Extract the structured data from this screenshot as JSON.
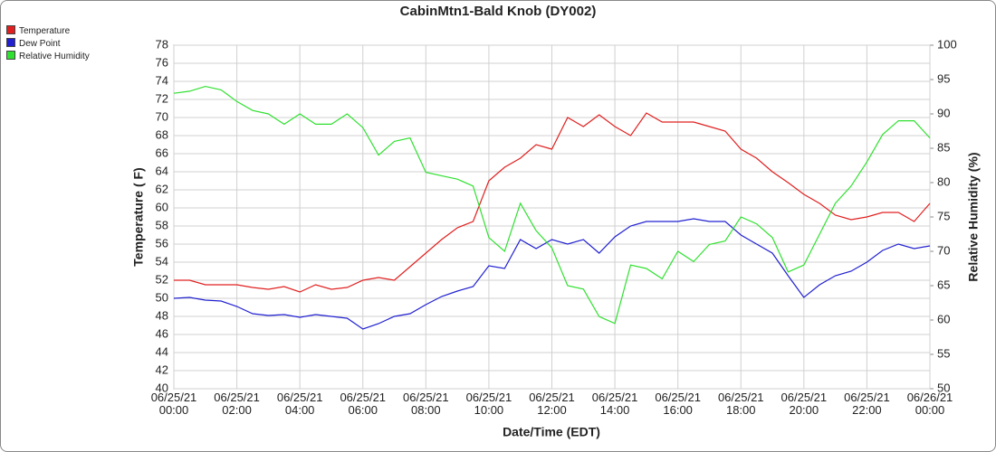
{
  "chart_data": {
    "type": "line",
    "title": "CabinMtn1-Bald Knob (DY002)",
    "x_label": "Date/Time (EDT)",
    "y_label": "Temperature ( F)",
    "y2_label": "Relative Humidity (%)",
    "legend": "top-left",
    "grid": true,
    "xlim": [
      0,
      24
    ],
    "xticks": [
      {
        "value": 0,
        "label": "06/25/21 00:00"
      },
      {
        "value": 2,
        "label": "06/25/21 02:00"
      },
      {
        "value": 4,
        "label": "06/25/21 04:00"
      },
      {
        "value": 6,
        "label": "06/25/21 06:00"
      },
      {
        "value": 8,
        "label": "06/25/21 08:00"
      },
      {
        "value": 10,
        "label": "06/25/21 10:00"
      },
      {
        "value": 12,
        "label": "06/25/21 12:00"
      },
      {
        "value": 14,
        "label": "06/25/21 14:00"
      },
      {
        "value": 16,
        "label": "06/25/21 16:00"
      },
      {
        "value": 18,
        "label": "06/25/21 18:00"
      },
      {
        "value": 20,
        "label": "06/25/21 20:00"
      },
      {
        "value": 22,
        "label": "06/25/21 22:00"
      },
      {
        "value": 24,
        "label": "06/26/21 00:00"
      }
    ],
    "ylim": [
      40,
      78
    ],
    "yticks": [
      40,
      42,
      44,
      46,
      48,
      50,
      52,
      54,
      56,
      58,
      60,
      62,
      64,
      66,
      68,
      70,
      72,
      74,
      76,
      78
    ],
    "y2lim": [
      50,
      100
    ],
    "y2ticks": [
      50,
      55,
      60,
      65,
      70,
      75,
      80,
      85,
      90,
      95,
      100
    ],
    "x": [
      0,
      0.5,
      1,
      1.5,
      2,
      2.5,
      3,
      3.5,
      4,
      4.5,
      5,
      5.5,
      6,
      6.5,
      7,
      7.5,
      8,
      8.5,
      9,
      9.5,
      10,
      10.5,
      11,
      11.5,
      12,
      12.5,
      13,
      13.5,
      14,
      14.5,
      15,
      15.5,
      16,
      16.5,
      17,
      17.5,
      18,
      18.5,
      19,
      19.5,
      20,
      20.5,
      21,
      21.5,
      22,
      22.5,
      23,
      23.5,
      24
    ],
    "series": [
      {
        "name": "Temperature",
        "color": "#e02020",
        "values": [
          52,
          52,
          51.5,
          51.5,
          51.5,
          51.2,
          51,
          51.3,
          50.7,
          51.5,
          51,
          51.2,
          52,
          52.3,
          52,
          53.5,
          55,
          56.5,
          57.8,
          58.5,
          63,
          64.5,
          65.5,
          67,
          66.5,
          70,
          69,
          70.3,
          69,
          68,
          70.5,
          69.5,
          69.5,
          69.5,
          69,
          68.5,
          66.5,
          65.5,
          64,
          62.8,
          61.5,
          60.5,
          59.2,
          58.7,
          59,
          59.5,
          59.5,
          58.5,
          60.5
        ]
      },
      {
        "name": "Dew Point",
        "color": "#2020d0",
        "values": [
          50,
          50.1,
          49.8,
          49.7,
          49.1,
          48.3,
          48.1,
          48.2,
          47.9,
          48.2,
          48,
          47.8,
          46.6,
          47.2,
          48,
          48.3,
          49.3,
          50.2,
          50.8,
          51.3,
          53.6,
          53.3,
          56.5,
          55.5,
          56.5,
          56,
          56.5,
          55,
          56.8,
          58,
          58.5,
          58.5,
          58.5,
          58.8,
          58.5,
          58.5,
          57,
          56,
          55,
          52.5,
          50.1,
          51.5,
          52.5,
          53,
          54,
          55.3,
          56,
          55.5,
          55.8
        ]
      },
      {
        "name": "Relative Humidity",
        "color": "#30e030",
        "axis": "y2",
        "values": [
          93,
          93.3,
          94,
          93.5,
          91.8,
          90.5,
          90,
          88.5,
          90,
          88.5,
          88.5,
          90,
          88,
          84,
          86,
          86.5,
          81.5,
          81,
          80.5,
          79.5,
          72,
          70,
          77,
          73,
          70.5,
          65,
          64.5,
          60.5,
          59.5,
          68,
          67.5,
          66,
          70,
          68.5,
          71,
          71.5,
          75,
          74,
          72,
          67,
          68,
          72.5,
          77,
          79.5,
          83,
          87,
          89,
          89,
          86.5
        ]
      }
    ]
  }
}
